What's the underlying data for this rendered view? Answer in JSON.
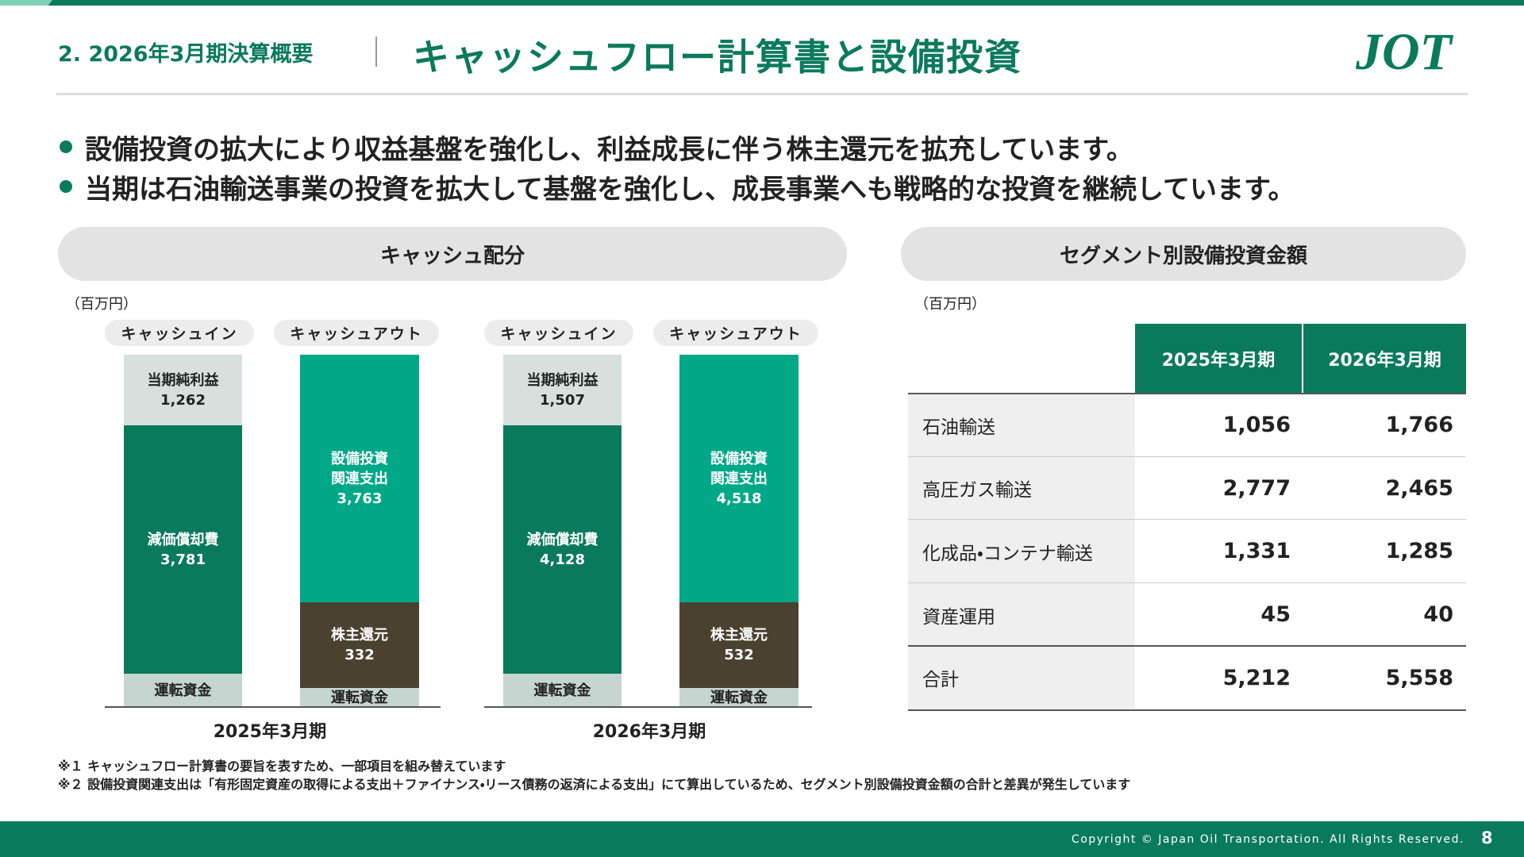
{
  "header": {
    "section": "2. 2026年3月期決算概要",
    "title": "キャッシュフロー計算書と設備投資",
    "logo": "JOT"
  },
  "bullets": [
    "設備投資の拡大により収益基盤を強化し、利益成長に伴う株主還元を拡充しています。",
    "当期は石油輸送事業の投資を拡大して基盤を強化し、成長事業へも戦略的な投資を継続しています。"
  ],
  "cash_allocation": {
    "title": "キャッシュ配分",
    "unit": "（百万円）",
    "periods": [
      {
        "period": "2025年3月期",
        "cash_in": {
          "label": "キャッシュイン",
          "segments": [
            {
              "name": [
                "当期純利益"
              ],
              "value": "1,262"
            },
            {
              "name": [
                "減価償却費"
              ],
              "value": "3,781"
            },
            {
              "name": [
                "運転資金"
              ]
            }
          ]
        },
        "cash_out": {
          "label": "キャッシュアウト",
          "segments": [
            {
              "name": [
                "設備投資",
                "関連支出"
              ],
              "value": "3,763"
            },
            {
              "name": [
                "株主還元"
              ],
              "value": "332"
            },
            {
              "name": [
                "運転資金"
              ]
            }
          ]
        }
      },
      {
        "period": "2026年3月期",
        "cash_in": {
          "label": "キャッシュイン",
          "segments": [
            {
              "name": [
                "当期純利益"
              ],
              "value": "1,507"
            },
            {
              "name": [
                "減価償却費"
              ],
              "value": "4,128"
            },
            {
              "name": [
                "運転資金"
              ]
            }
          ]
        },
        "cash_out": {
          "label": "キャッシュアウト",
          "segments": [
            {
              "name": [
                "設備投資",
                "関連支出"
              ],
              "value": "4,518"
            },
            {
              "name": [
                "株主還元"
              ],
              "value": "532"
            },
            {
              "name": [
                "運転資金"
              ]
            }
          ]
        }
      }
    ]
  },
  "segment_capex": {
    "title": "セグメント別設備投資金額",
    "unit": "（百万円）",
    "columns": [
      "2025年3月期",
      "2026年3月期"
    ],
    "rows": [
      [
        "石油輸送",
        "1,056",
        "1,766"
      ],
      [
        "高圧ガス輸送",
        "2,777",
        "2,465"
      ],
      [
        "化成品・コンテナ輸送",
        "1,331",
        "1,285"
      ],
      [
        "資産運用",
        "45",
        "40"
      ],
      [
        "合計",
        "5,212",
        "5,558"
      ]
    ]
  },
  "notes": [
    "※１ キャッシュフロー計算書の要旨を表すため、一部項目を組み替えています",
    "※２ 設備投資関連支出は「有形固定資産の取得による支出＋ファイナンス・リース債務の返済による支出」にて算出しているため、セグメント別設備投資金額の合計と差異が発生しています"
  ],
  "footer": {
    "copyright": "Copyright © Japan Oil Transportation. All Rights Reserved.",
    "page": "8"
  }
}
